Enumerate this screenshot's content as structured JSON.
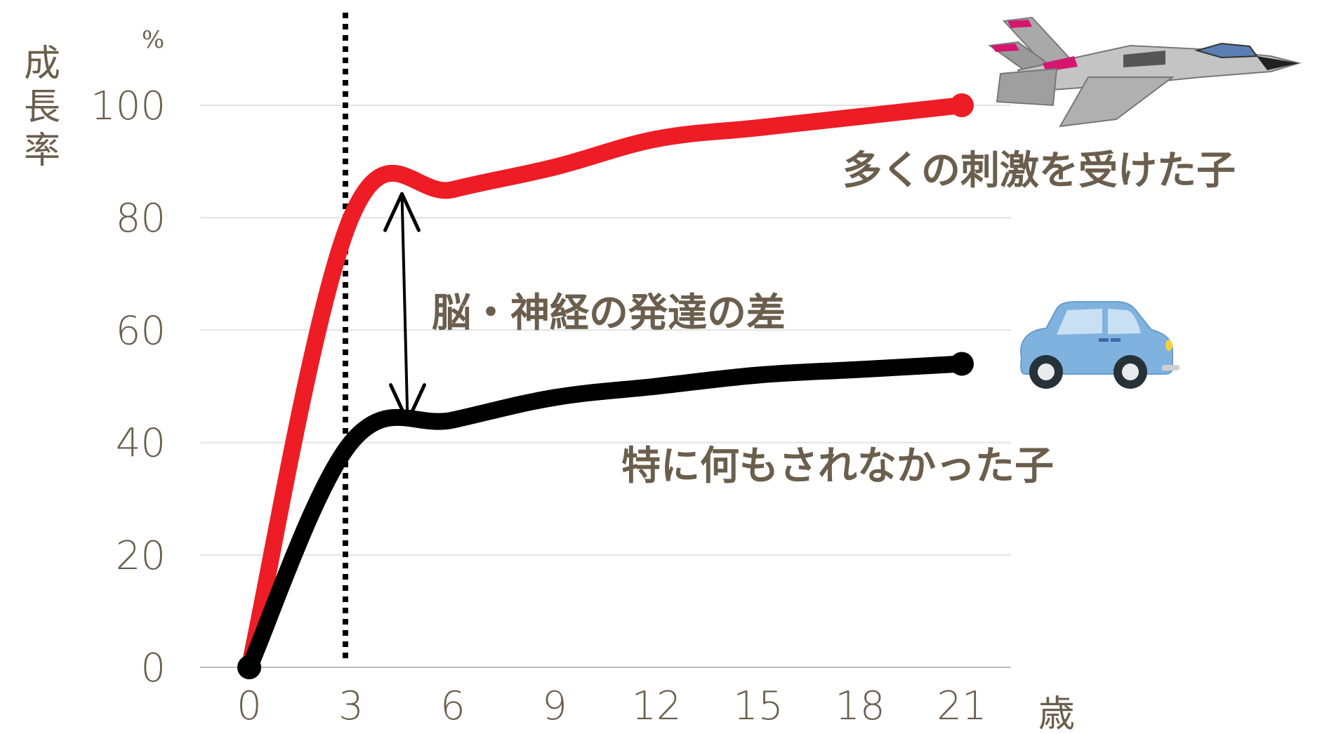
{
  "chart_data": {
    "type": "line",
    "x": [
      0,
      3,
      6,
      9,
      12,
      15,
      18,
      21
    ],
    "series": [
      {
        "values": [
          0,
          80,
          85,
          89,
          94,
          96,
          98,
          100
        ],
        "color": "#ee1c25"
      },
      {
        "values": [
          0,
          40,
          44,
          48,
          50,
          52,
          53,
          54
        ],
        "color": "#000000"
      }
    ],
    "xticks": [
      "0",
      "3",
      "6",
      "9",
      "12",
      "15",
      "18",
      "21"
    ],
    "yticks": [
      "0",
      "20",
      "40",
      "60",
      "80",
      "100"
    ],
    "xlim": [
      0,
      21
    ],
    "ylim": [
      0,
      100
    ],
    "grid": true,
    "xlabel": "歳",
    "ylabel": "成長率",
    "yunit": "%",
    "vline_x": 3,
    "diff_arrow_x": 4.5,
    "annotations": {
      "top_series": "多くの刺激を受けた子",
      "bottom_series": "特に何もされなかった子",
      "difference": "脳・神経の発達の差"
    },
    "icons": {
      "top": "fighter-jet-icon",
      "bottom": "car-icon"
    }
  }
}
